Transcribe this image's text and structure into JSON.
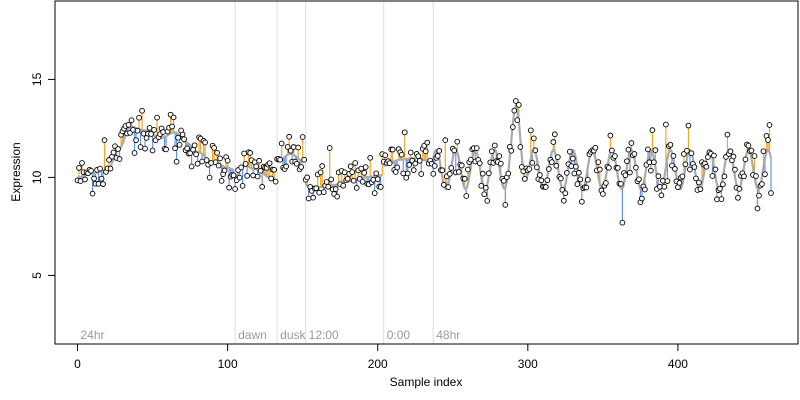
{
  "chart_data": {
    "type": "scatter",
    "title": "",
    "xlabel": "Sample index",
    "ylabel": "Expression",
    "xlim": [
      -15,
      480
    ],
    "ylim": [
      1.5,
      19
    ],
    "x_ticks": [
      0,
      100,
      200,
      300,
      400
    ],
    "y_ticks": [
      5,
      10,
      15
    ],
    "grid": false,
    "legend": "none",
    "colors": {
      "points_fill": "#ffffff",
      "points_stroke": "#000000",
      "fitted_line": "#aaaaaa",
      "residual_up": "#f5a623",
      "residual_down": "#6495ed",
      "annotation_line": "#dddddd",
      "annotation_text": "#9a9a9a"
    },
    "annotations": [
      {
        "label": "24hr",
        "x": 0
      },
      {
        "label": "dawn",
        "x": 105
      },
      {
        "label": "dusk",
        "x": 133
      },
      {
        "label": "12:00",
        "x": 152
      },
      {
        "label": "0:00",
        "x": 204
      },
      {
        "label": "48hr",
        "x": 237
      }
    ],
    "segments": [
      {
        "x_start": 0,
        "x_end": 104,
        "type": "smooth",
        "knots": [
          [
            0,
            10.0
          ],
          [
            10,
            10.2
          ],
          [
            20,
            10.4
          ],
          [
            28,
            11.5
          ],
          [
            35,
            12.6
          ],
          [
            45,
            12.4
          ],
          [
            55,
            12.0
          ],
          [
            65,
            12.3
          ],
          [
            72,
            11.8
          ],
          [
            80,
            11.3
          ],
          [
            90,
            10.8
          ],
          [
            100,
            10.5
          ],
          [
            104,
            10.4
          ]
        ]
      },
      {
        "x_start": 105,
        "x_end": 132,
        "type": "smooth",
        "knots": [
          [
            105,
            10.0
          ],
          [
            110,
            10.6
          ],
          [
            120,
            10.4
          ],
          [
            128,
            10.0
          ],
          [
            132,
            9.9
          ]
        ]
      },
      {
        "x_start": 133,
        "x_end": 151,
        "type": "smooth",
        "knots": [
          [
            133,
            10.8
          ],
          [
            142,
            11.2
          ],
          [
            151,
            10.8
          ]
        ]
      },
      {
        "x_start": 152,
        "x_end": 203,
        "type": "smooth",
        "knots": [
          [
            152,
            9.6
          ],
          [
            160,
            9.5
          ],
          [
            170,
            9.6
          ],
          [
            180,
            9.8
          ],
          [
            190,
            10.0
          ],
          [
            203,
            10.1
          ]
        ]
      },
      {
        "x_start": 204,
        "x_end": 236,
        "type": "smooth",
        "knots": [
          [
            204,
            10.6
          ],
          [
            215,
            10.9
          ],
          [
            225,
            11.0
          ],
          [
            236,
            10.8
          ]
        ]
      },
      {
        "x_start": 237,
        "x_end": 462,
        "type": "oscillating",
        "base": 10.4,
        "amplitude": 1.0,
        "period": 13,
        "phase": 0.6,
        "bump": {
          "center": 293,
          "width": 4,
          "height": 2.5
        }
      }
    ],
    "point_count": 463,
    "noise_sd": 0.5,
    "outliers": [
      {
        "x": 18,
        "y": 11.9
      },
      {
        "x": 43,
        "y": 13.4
      },
      {
        "x": 62,
        "y": 13.2
      },
      {
        "x": 66,
        "y": 10.8
      },
      {
        "x": 130,
        "y": 10.4
      },
      {
        "x": 168,
        "y": 11.5
      },
      {
        "x": 218,
        "y": 12.3
      },
      {
        "x": 245,
        "y": 11.9
      },
      {
        "x": 285,
        "y": 8.6
      },
      {
        "x": 292,
        "y": 13.9
      },
      {
        "x": 294,
        "y": 13.7
      },
      {
        "x": 302,
        "y": 12.4
      },
      {
        "x": 318,
        "y": 12.2
      },
      {
        "x": 392,
        "y": 12.7
      },
      {
        "x": 400,
        "y": 9.5
      },
      {
        "x": 462,
        "y": 9.2
      }
    ]
  }
}
